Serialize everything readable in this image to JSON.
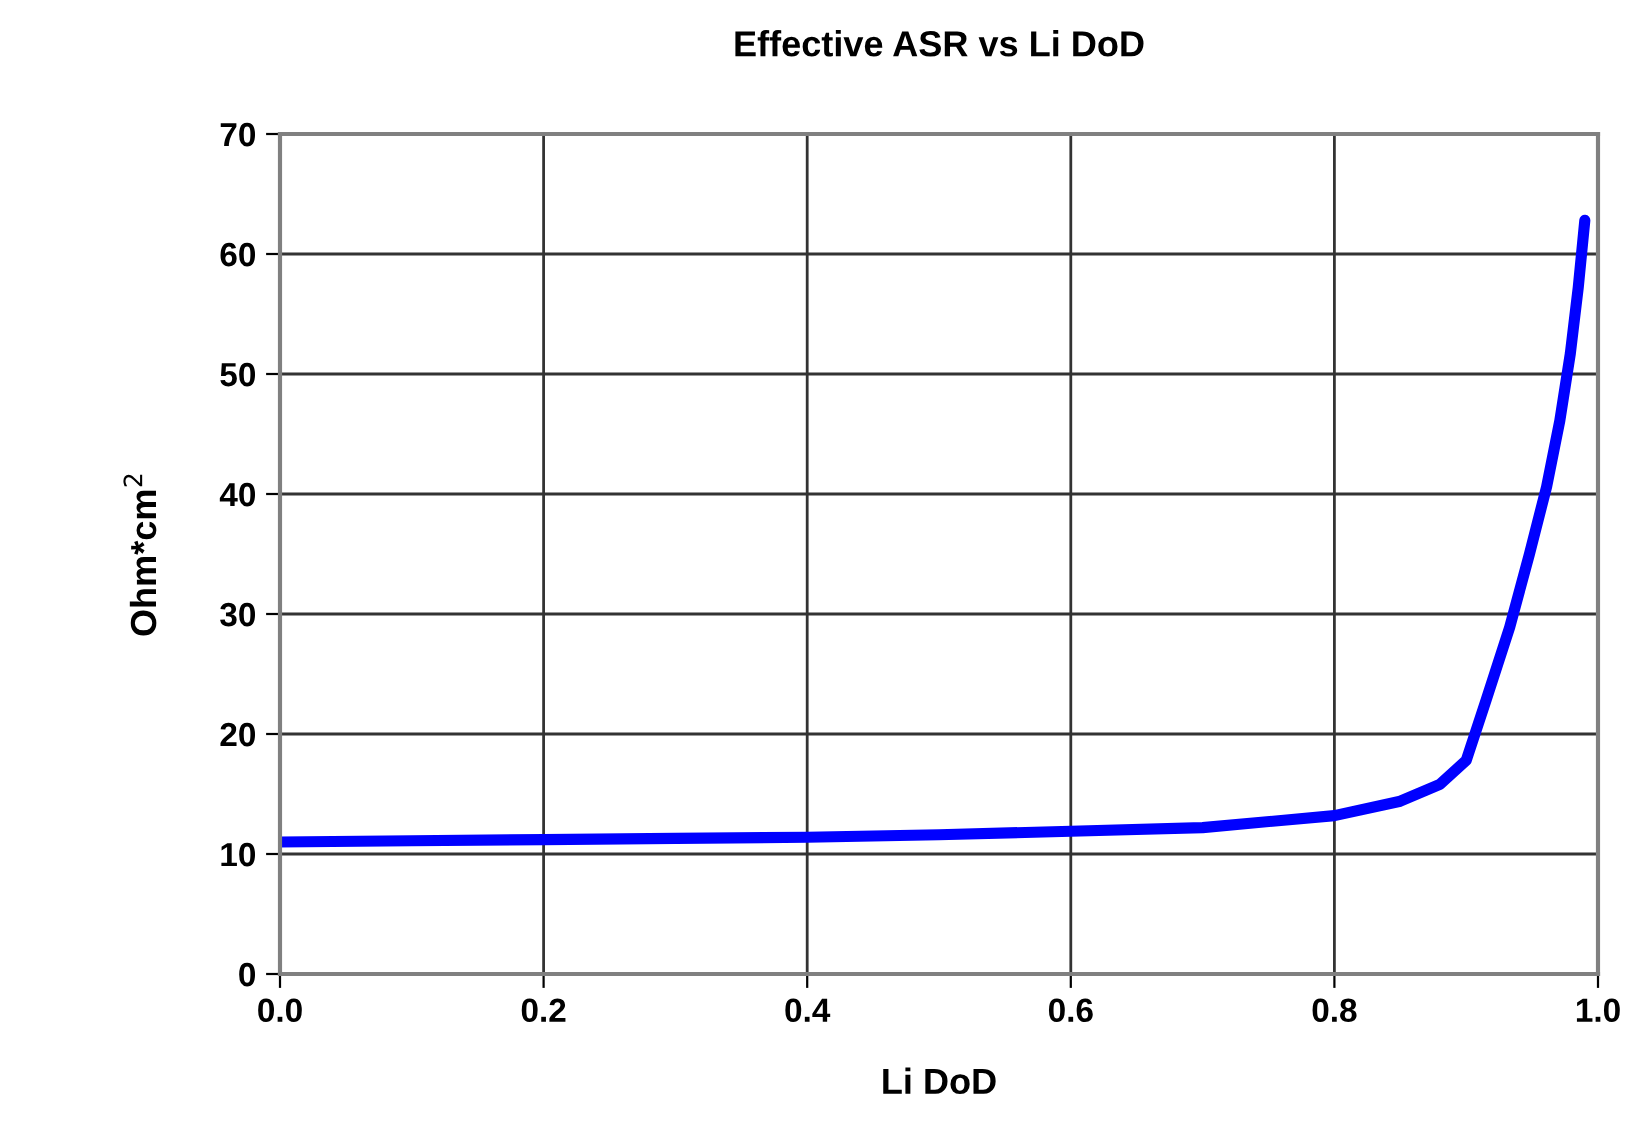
{
  "chart_data": {
    "type": "line",
    "title": "Effective ASR vs Li DoD",
    "xlabel": "Li DoD",
    "ylabel": "Ohm*cm$^{2}$",
    "series": [
      {
        "color": "#0000ff",
        "x": [
          0.0,
          0.1,
          0.2,
          0.3,
          0.4,
          0.5,
          0.6,
          0.7,
          0.8,
          0.85,
          0.88,
          0.9,
          0.915,
          0.933,
          0.948,
          0.961,
          0.971,
          0.979,
          0.985,
          0.99
        ],
        "values": [
          11.0,
          11.1,
          11.2,
          11.3,
          11.4,
          11.6,
          11.9,
          12.2,
          13.2,
          14.4,
          15.8,
          17.8,
          22.8,
          28.9,
          35.0,
          40.6,
          46.1,
          51.7,
          57.2,
          62.8
        ]
      }
    ],
    "xlim": [
      0,
      1
    ],
    "ylim": [
      0,
      70
    ],
    "xticks": [
      {
        "value": 0,
        "label": "0.0"
      },
      {
        "value": 0.2,
        "label": "0.2"
      },
      {
        "value": 0.4,
        "label": "0.4"
      },
      {
        "value": 0.6,
        "label": "0.6"
      },
      {
        "value": 0.8,
        "label": "0.8"
      },
      {
        "value": 1.0,
        "label": "1.0"
      }
    ],
    "yticks": [
      0,
      10,
      20,
      30,
      40,
      50,
      60,
      70
    ],
    "grid": true,
    "marker": "none",
    "line_style": "solid",
    "legend": false
  }
}
